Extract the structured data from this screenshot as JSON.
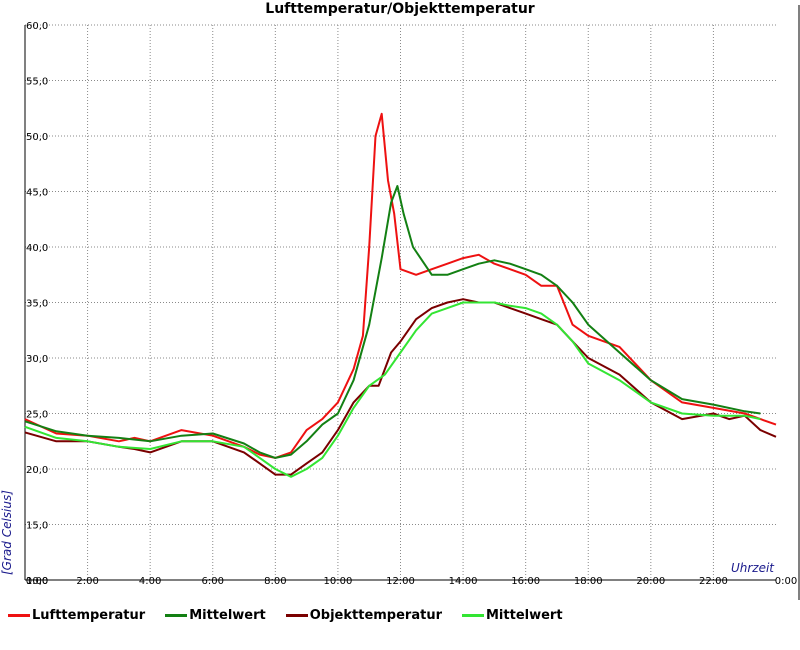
{
  "chart_data": {
    "type": "line",
    "title": "Lufttemperatur/Objekttemperatur",
    "xlabel": "Uhrzeit",
    "ylabel": "[Grad Celsius]",
    "xlim": [
      0,
      24
    ],
    "ylim": [
      10,
      60
    ],
    "x_ticks": [
      "0:00",
      "2:00",
      "4:00",
      "6:00",
      "8:00",
      "10:00",
      "12:00",
      "14:00",
      "16:00",
      "18:00",
      "20:00",
      "22:00",
      "0:00"
    ],
    "y_ticks": [
      "10,0",
      "15,0",
      "20,0",
      "25,0",
      "30,0",
      "35,0",
      "40,0",
      "45,0",
      "50,0",
      "55,0",
      "60,0"
    ],
    "grid": true,
    "legend_position": "bottom",
    "series": [
      {
        "name": "Lufttemperatur",
        "color": "#ee1111",
        "x": [
          0,
          1,
          2,
          3,
          3.5,
          4,
          5,
          6,
          7,
          7.5,
          8,
          8.5,
          9,
          9.5,
          10,
          10.5,
          10.8,
          11,
          11.2,
          11.4,
          11.6,
          11.8,
          12,
          12.5,
          13,
          13.5,
          14,
          14.5,
          15,
          15.5,
          16,
          16.5,
          17,
          17.5,
          18,
          19,
          20,
          21,
          22,
          23,
          24
        ],
        "y": [
          24.5,
          23.2,
          23.0,
          22.5,
          22.8,
          22.5,
          23.5,
          23.0,
          22.0,
          21.3,
          21.0,
          21.5,
          23.5,
          24.5,
          26.0,
          29.0,
          32.0,
          40.0,
          50.0,
          52.0,
          46.0,
          43.0,
          38.0,
          37.5,
          38.0,
          38.5,
          39.0,
          39.3,
          38.5,
          38.0,
          37.5,
          36.5,
          36.5,
          33.0,
          32.0,
          31.0,
          28.0,
          26.0,
          25.5,
          25.0,
          24.0
        ]
      },
      {
        "name": "Mittelwert",
        "color": "#138013",
        "x": [
          0,
          1,
          2,
          3,
          4,
          5,
          6,
          7,
          7.5,
          8,
          8.5,
          9,
          9.5,
          10,
          10.5,
          11,
          11.4,
          11.7,
          11.9,
          12.1,
          12.4,
          13,
          13.5,
          14,
          14.5,
          15,
          15.5,
          16,
          16.5,
          17,
          17.5,
          18,
          19,
          20,
          21,
          22,
          23,
          23.5
        ],
        "y": [
          24.3,
          23.4,
          23.0,
          22.8,
          22.5,
          23.0,
          23.2,
          22.3,
          21.5,
          21.0,
          21.3,
          22.5,
          24.0,
          25.0,
          28.0,
          33.0,
          39.0,
          44.0,
          45.5,
          43.0,
          40.0,
          37.5,
          37.5,
          38.0,
          38.5,
          38.8,
          38.5,
          38.0,
          37.5,
          36.5,
          35.0,
          33.0,
          30.5,
          28.0,
          26.3,
          25.8,
          25.2,
          25.0
        ]
      },
      {
        "name": "Objekttemperatur",
        "color": "#7a0000",
        "x": [
          0,
          1,
          2,
          3,
          3.5,
          4,
          5,
          6,
          7,
          7.5,
          8,
          8.5,
          9,
          9.5,
          10,
          10.5,
          11,
          11.3,
          11.7,
          12,
          12.5,
          13,
          13.5,
          14,
          14.5,
          15,
          15.5,
          16,
          16.5,
          17,
          17.5,
          18,
          19,
          20,
          21,
          22,
          22.5,
          23,
          23.5,
          24
        ],
        "y": [
          23.3,
          22.5,
          22.5,
          22.0,
          21.8,
          21.5,
          22.5,
          22.5,
          21.5,
          20.5,
          19.5,
          19.5,
          20.5,
          21.5,
          23.5,
          26.0,
          27.5,
          27.5,
          30.5,
          31.5,
          33.5,
          34.5,
          35.0,
          35.3,
          35.0,
          35.0,
          34.5,
          34.0,
          33.5,
          33.0,
          31.5,
          30.0,
          28.5,
          26.0,
          24.5,
          25.0,
          24.5,
          24.8,
          23.5,
          22.9
        ]
      },
      {
        "name": "Mittelwert",
        "color": "#33e533",
        "x": [
          0,
          1,
          2,
          3,
          4,
          5,
          6,
          7,
          7.5,
          8,
          8.5,
          9,
          9.5,
          10,
          10.5,
          11,
          11.5,
          12,
          12.5,
          13,
          13.5,
          14,
          14.5,
          15,
          15.5,
          16,
          16.5,
          17,
          17.5,
          18,
          19,
          20,
          21,
          22,
          23,
          23.5
        ],
        "y": [
          23.8,
          22.8,
          22.5,
          22.0,
          21.8,
          22.5,
          22.5,
          22.0,
          21.0,
          20.0,
          19.3,
          20.0,
          21.0,
          23.0,
          25.5,
          27.5,
          28.5,
          30.5,
          32.5,
          34.0,
          34.5,
          35.0,
          35.0,
          35.0,
          34.7,
          34.5,
          34.0,
          33.0,
          31.5,
          29.5,
          28.0,
          26.0,
          25.0,
          24.8,
          24.8,
          24.5
        ]
      }
    ]
  }
}
